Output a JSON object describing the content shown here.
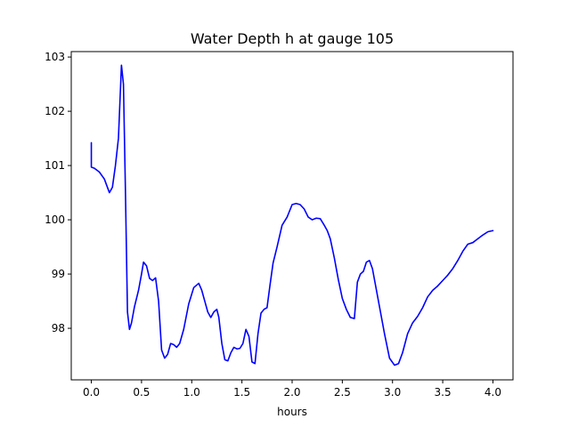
{
  "chart_data": {
    "type": "line",
    "title": "Water Depth h at gauge 105",
    "xlabel": "hours",
    "ylabel": "",
    "xlim": [
      -0.2,
      4.2
    ],
    "ylim": [
      97.05,
      103.1
    ],
    "xticks": [
      0.0,
      0.5,
      1.0,
      1.5,
      2.0,
      2.5,
      3.0,
      3.5,
      4.0
    ],
    "xtick_labels": [
      "0.0",
      "0.5",
      "1.0",
      "1.5",
      "2.0",
      "2.5",
      "3.0",
      "3.5",
      "4.0"
    ],
    "yticks": [
      98,
      99,
      100,
      101,
      102,
      103
    ],
    "ytick_labels": [
      "98",
      "99",
      "100",
      "101",
      "102",
      "103"
    ],
    "grid": false,
    "legend": "none",
    "series": [
      {
        "color": "#0000ff",
        "x": [
          0.0,
          0.0,
          0.03,
          0.08,
          0.13,
          0.18,
          0.21,
          0.24,
          0.27,
          0.3,
          0.32,
          0.34,
          0.36,
          0.38,
          0.4,
          0.43,
          0.47,
          0.5,
          0.52,
          0.55,
          0.58,
          0.61,
          0.64,
          0.67,
          0.7,
          0.73,
          0.76,
          0.79,
          0.82,
          0.85,
          0.88,
          0.92,
          0.97,
          1.02,
          1.07,
          1.1,
          1.13,
          1.16,
          1.19,
          1.22,
          1.25,
          1.27,
          1.3,
          1.33,
          1.36,
          1.39,
          1.42,
          1.45,
          1.48,
          1.51,
          1.54,
          1.57,
          1.6,
          1.63,
          1.66,
          1.69,
          1.72,
          1.75,
          1.78,
          1.81,
          1.85,
          1.9,
          1.95,
          2.0,
          2.04,
          2.08,
          2.12,
          2.16,
          2.2,
          2.24,
          2.28,
          2.32,
          2.35,
          2.38,
          2.42,
          2.46,
          2.5,
          2.54,
          2.58,
          2.62,
          2.65,
          2.68,
          2.71,
          2.74,
          2.77,
          2.8,
          2.83,
          2.87,
          2.92,
          2.97,
          3.02,
          3.06,
          3.1,
          3.15,
          3.2,
          3.25,
          3.3,
          3.35,
          3.4,
          3.45,
          3.5,
          3.55,
          3.6,
          3.65,
          3.7,
          3.75,
          3.8,
          3.85,
          3.9,
          3.95,
          4.0
        ],
        "y": [
          101.42,
          100.97,
          100.95,
          100.88,
          100.75,
          100.5,
          100.6,
          101.0,
          101.5,
          102.85,
          102.5,
          100.5,
          98.3,
          97.98,
          98.1,
          98.4,
          98.7,
          99.0,
          99.22,
          99.15,
          98.92,
          98.88,
          98.93,
          98.5,
          97.6,
          97.45,
          97.52,
          97.72,
          97.7,
          97.65,
          97.72,
          97.98,
          98.45,
          98.75,
          98.83,
          98.7,
          98.5,
          98.3,
          98.2,
          98.3,
          98.35,
          98.2,
          97.72,
          97.42,
          97.4,
          97.55,
          97.65,
          97.62,
          97.63,
          97.72,
          97.98,
          97.85,
          97.38,
          97.35,
          97.9,
          98.28,
          98.35,
          98.38,
          98.8,
          99.2,
          99.5,
          99.9,
          100.05,
          100.28,
          100.3,
          100.28,
          100.2,
          100.05,
          100.0,
          100.03,
          100.02,
          99.9,
          99.8,
          99.65,
          99.3,
          98.9,
          98.55,
          98.35,
          98.2,
          98.18,
          98.85,
          99.0,
          99.05,
          99.22,
          99.25,
          99.1,
          98.8,
          98.4,
          97.9,
          97.45,
          97.32,
          97.35,
          97.55,
          97.9,
          98.1,
          98.22,
          98.38,
          98.58,
          98.7,
          98.78,
          98.88,
          98.98,
          99.1,
          99.25,
          99.42,
          99.55,
          99.58,
          99.65,
          99.72,
          99.78,
          99.8
        ]
      }
    ]
  }
}
